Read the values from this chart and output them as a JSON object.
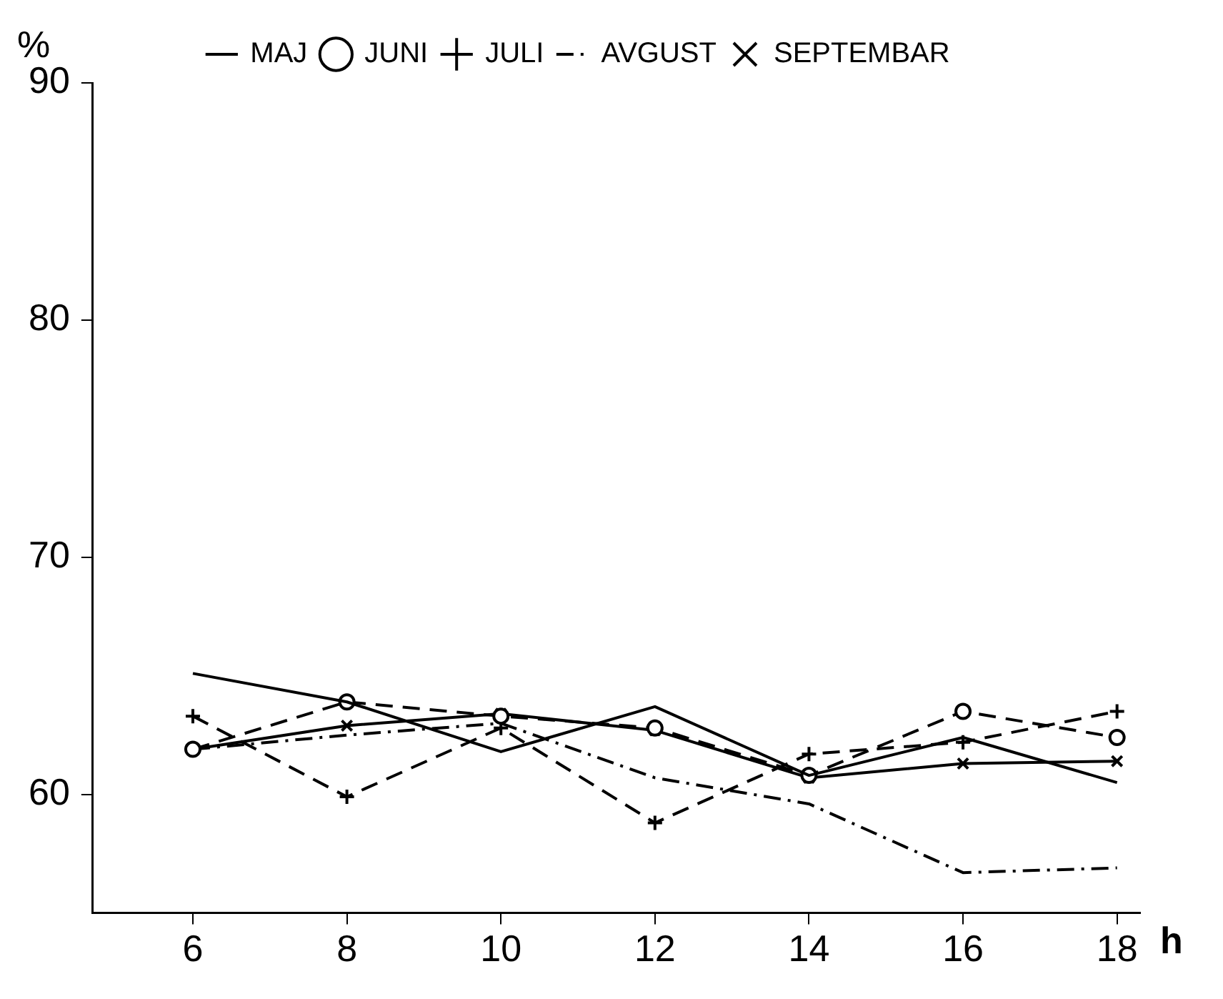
{
  "chart_data": {
    "type": "line",
    "xlabel": "h",
    "ylabel": "%",
    "x": [
      6,
      8,
      10,
      12,
      14,
      16,
      18
    ],
    "xlim": [
      4.7,
      18.3
    ],
    "xticks": [
      6,
      8,
      10,
      12,
      14,
      16,
      18
    ],
    "ylim": [
      55,
      90
    ],
    "yticks": [
      60,
      70,
      80,
      90
    ],
    "grid": false,
    "legend": "top",
    "series": [
      {
        "name": "MAJ",
        "color": "#000000",
        "marker": "none",
        "line_style": "solid",
        "values": [
          65.1,
          63.9,
          61.8,
          63.7,
          60.8,
          62.4,
          60.5
        ]
      },
      {
        "name": "JUNI",
        "color": "#000000",
        "marker": "circle",
        "line_style": "dashed",
        "values": [
          61.9,
          63.9,
          63.3,
          62.8,
          60.8,
          63.5,
          62.4
        ]
      },
      {
        "name": "JULI",
        "color": "#000000",
        "marker": "cross",
        "line_style": "dashed",
        "values": [
          63.3,
          59.9,
          62.8,
          58.8,
          61.7,
          62.2,
          63.5
        ]
      },
      {
        "name": "AVGUST",
        "color": "#000000",
        "marker": "none",
        "line_style": "dashdot",
        "values": [
          61.9,
          62.5,
          63.0,
          60.7,
          59.6,
          56.7,
          56.9
        ]
      },
      {
        "name": "SEPTEMBAR",
        "color": "#000000",
        "marker": "x",
        "line_style": "solid",
        "values": [
          61.9,
          62.9,
          63.4,
          62.7,
          60.7,
          61.3,
          61.4
        ]
      }
    ]
  }
}
